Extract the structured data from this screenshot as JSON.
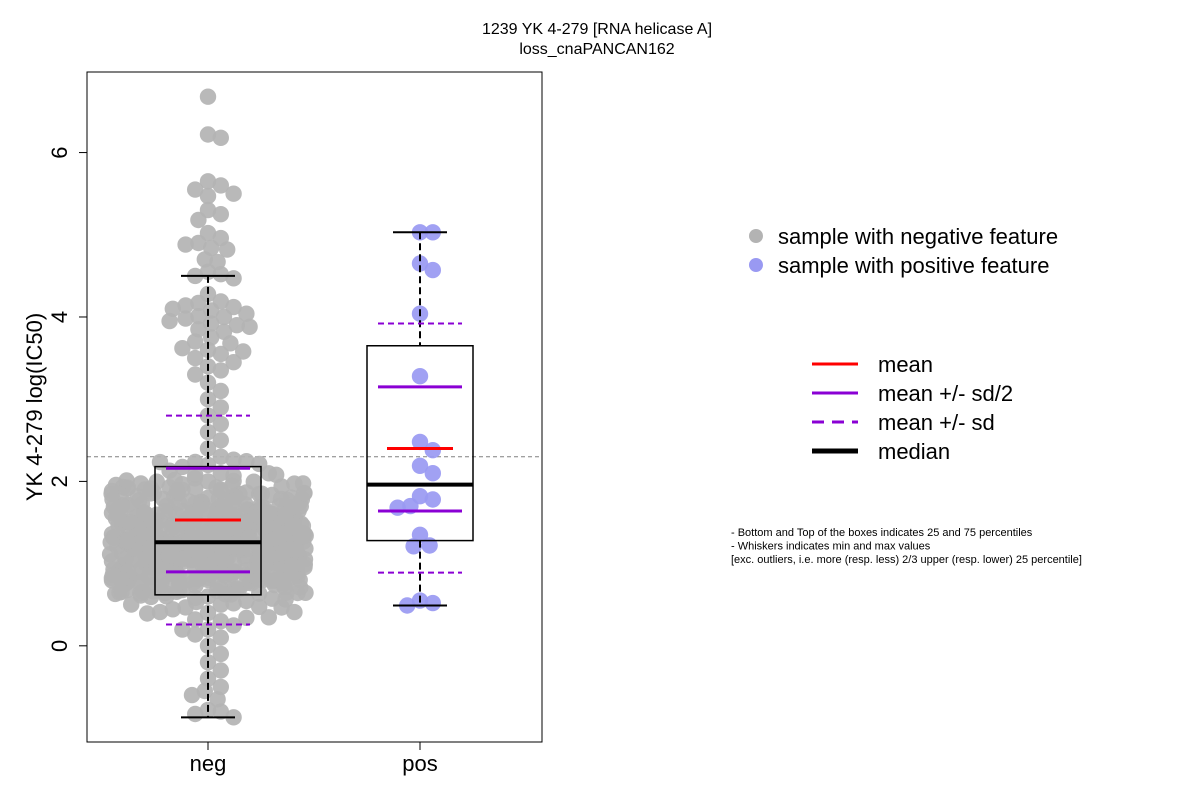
{
  "chart_data": {
    "type": "box-beeswarm",
    "title": "1239 YK 4-279 [RNA helicase A]",
    "subtitle": "loss_cnaPANCAN162",
    "ylabel": "YK 4-279 log(IC50)",
    "ylim": [
      -1.17,
      6.98
    ],
    "yticks": [
      0,
      2,
      4,
      6
    ],
    "categories": [
      "neg",
      "pos"
    ],
    "reference_line_y": 2.3,
    "groups": [
      {
        "name": "neg",
        "q1": 0.62,
        "median": 1.26,
        "q3": 2.18,
        "mean": 1.53,
        "mean_minus_half_sd": 0.9,
        "mean_plus_half_sd": 2.16,
        "mean_minus_sd": 0.26,
        "mean_plus_sd": 2.8,
        "whisker_low": -0.87,
        "whisker_high": 4.5,
        "points": [
          6.68,
          6.22,
          6.18,
          5.65,
          5.6,
          5.55,
          5.5,
          5.47,
          5.3,
          5.25,
          5.18,
          5.02,
          4.96,
          4.9,
          4.88,
          4.84,
          4.82,
          4.7,
          4.67,
          4.55,
          4.52,
          4.5,
          4.47,
          4.28,
          4.19,
          4.17,
          4.14,
          4.12,
          4.1,
          4.08,
          4.04,
          4.01,
          4.0,
          3.98,
          3.95,
          3.92,
          3.9,
          3.88,
          3.85,
          3.82,
          3.75,
          3.7,
          3.68,
          3.62,
          3.6,
          3.58,
          3.55,
          3.5,
          3.45,
          3.4,
          3.35,
          3.3,
          3.2,
          3.1,
          3.0,
          2.9,
          2.8,
          2.7,
          2.6,
          2.5,
          2.4,
          2.3,
          2.2,
          2.1,
          2.0,
          1.9,
          1.8,
          1.7,
          1.6,
          1.5,
          1.4,
          1.3,
          1.2,
          1.1,
          1.0,
          0.9,
          0.8,
          0.7,
          0.6,
          0.5,
          0.4,
          0.3,
          0.2,
          0.1,
          0.0,
          -0.1,
          -0.2,
          -0.3,
          -0.4,
          -0.5,
          -0.55,
          -0.6,
          -0.65,
          -0.78,
          -0.8,
          -0.83,
          -0.87
        ]
      },
      {
        "name": "pos",
        "q1": 1.28,
        "median": 1.96,
        "q3": 3.65,
        "mean": 2.4,
        "mean_minus_half_sd": 1.64,
        "mean_plus_half_sd": 3.15,
        "mean_minus_sd": 0.89,
        "mean_plus_sd": 3.92,
        "whisker_low": 0.49,
        "whisker_high": 5.03,
        "points": [
          5.03,
          5.03,
          4.65,
          4.57,
          4.04,
          3.28,
          2.48,
          2.38,
          2.19,
          2.1,
          1.82,
          1.78,
          1.7,
          1.68,
          1.35,
          1.22,
          1.21,
          0.55,
          0.52,
          0.49
        ]
      }
    ],
    "point_legend": [
      {
        "label": "sample with negative feature",
        "color": "#b3b3b3"
      },
      {
        "label": "sample with positive feature",
        "color": "#9999f2"
      }
    ],
    "line_legend": [
      {
        "label": "mean",
        "color": "#ff0000",
        "style": "solid"
      },
      {
        "label": "mean +/- sd/2",
        "color": "#8a00d4",
        "style": "solid"
      },
      {
        "label": "mean +/- sd",
        "color": "#8a00d4",
        "style": "dashed"
      },
      {
        "label": "median",
        "color": "#000000",
        "style": "thick"
      }
    ],
    "notes": [
      "- Bottom and Top of the boxes indicates 25 and 75 percentiles",
      "- Whiskers indicates min and max values",
      "[exc. outliers, i.e. more (resp. less) 2/3 upper (resp. lower) 25 percentile]"
    ]
  }
}
